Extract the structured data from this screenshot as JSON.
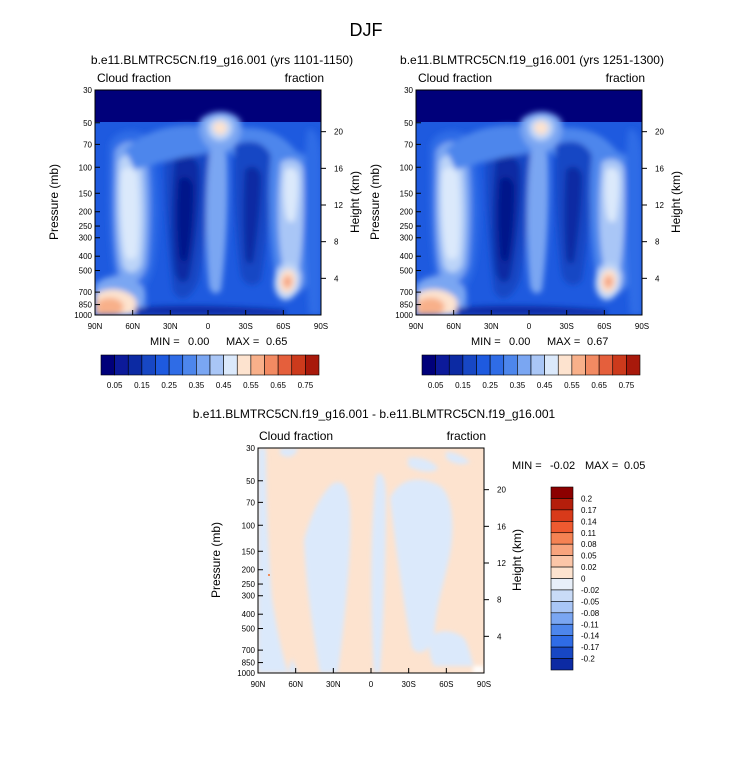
{
  "figure": {
    "title": "DJF",
    "colors": {
      "deep_blue": "#00007a",
      "mid_blue": "#1e5adf",
      "light_blue": "#a9c6f6",
      "pale_blue": "#dbe9fb",
      "pale_peach": "#fde3cf",
      "orange": "#ef8c5a",
      "dark_red": "#8c0000"
    }
  },
  "chart_data": [
    {
      "type": "heatmap",
      "title": "b.e11.BLMTRC5CN.f19_g16.001 (yrs 1101-1150)",
      "left_label": "Cloud fraction",
      "right_label": "fraction",
      "xlabel": "",
      "ylabel": "Pressure (mb)",
      "y2label": "Height (km)",
      "x_ticks": [
        "90N",
        "60N",
        "30N",
        "0",
        "30S",
        "60S",
        "90S"
      ],
      "x_range": [
        90,
        -90
      ],
      "y_ticks": [
        30,
        50,
        70,
        100,
        150,
        200,
        250,
        300,
        400,
        500,
        700,
        850,
        1000
      ],
      "y_range": [
        30,
        1000
      ],
      "y2_ticks": [
        20,
        16,
        12,
        8,
        4
      ],
      "min_label": "MIN =",
      "min_value": "0.00",
      "max_label": "MAX =",
      "max_value": "0.65",
      "colorbar_labels": [
        "0.05",
        "0.15",
        "0.25",
        "0.35",
        "0.45",
        "0.55",
        "0.65",
        "0.75"
      ],
      "colorbar_levels": [
        0.05,
        0.1,
        0.15,
        0.2,
        0.25,
        0.3,
        0.35,
        0.4,
        0.45,
        0.5,
        0.55,
        0.6,
        0.65,
        0.7,
        0.75
      ]
    },
    {
      "type": "heatmap",
      "title": "b.e11.BLMTRC5CN.f19_g16.001 (yrs 1251-1300)",
      "left_label": "Cloud fraction",
      "right_label": "fraction",
      "xlabel": "",
      "ylabel": "Pressure (mb)",
      "y2label": "Height (km)",
      "x_ticks": [
        "90N",
        "60N",
        "30N",
        "0",
        "30S",
        "60S",
        "90S"
      ],
      "x_range": [
        90,
        -90
      ],
      "y_ticks": [
        30,
        50,
        70,
        100,
        150,
        200,
        250,
        300,
        400,
        500,
        700,
        850,
        1000
      ],
      "y_range": [
        30,
        1000
      ],
      "y2_ticks": [
        20,
        16,
        12,
        8,
        4
      ],
      "min_label": "MIN =",
      "min_value": "0.00",
      "max_label": "MAX =",
      "max_value": "0.67",
      "colorbar_labels": [
        "0.05",
        "0.15",
        "0.25",
        "0.35",
        "0.45",
        "0.55",
        "0.65",
        "0.75"
      ],
      "colorbar_levels": [
        0.05,
        0.1,
        0.15,
        0.2,
        0.25,
        0.3,
        0.35,
        0.4,
        0.45,
        0.5,
        0.55,
        0.6,
        0.65,
        0.7,
        0.75
      ]
    },
    {
      "type": "heatmap",
      "title": "b.e11.BLMTRC5CN.f19_g16.001 - b.e11.BLMTRC5CN.f19_g16.001",
      "left_label": "Cloud fraction",
      "right_label": "fraction",
      "xlabel": "",
      "ylabel": "Pressure (mb)",
      "y2label": "Height (km)",
      "x_ticks": [
        "90N",
        "60N",
        "30N",
        "0",
        "30S",
        "60S",
        "90S"
      ],
      "x_range": [
        90,
        -90
      ],
      "y_ticks": [
        30,
        50,
        70,
        100,
        150,
        200,
        250,
        300,
        400,
        500,
        700,
        850,
        1000
      ],
      "y_range": [
        30,
        1000
      ],
      "y2_ticks": [
        20,
        16,
        12,
        8,
        4
      ],
      "min_label": "MIN =",
      "min_value": "-0.02",
      "max_label": "MAX =",
      "max_value": "0.05",
      "colorbar_labels": [
        "0.2",
        "0.17",
        "0.14",
        "0.11",
        "0.08",
        "0.05",
        "0.02",
        "0",
        "-0.02",
        "-0.05",
        "-0.08",
        "-0.11",
        "-0.14",
        "-0.17",
        "-0.2"
      ],
      "colorbar_levels": [
        0.2,
        0.17,
        0.14,
        0.11,
        0.08,
        0.05,
        0.02,
        0,
        -0.02,
        -0.05,
        -0.08,
        -0.11,
        -0.14,
        -0.17,
        -0.2
      ]
    }
  ]
}
